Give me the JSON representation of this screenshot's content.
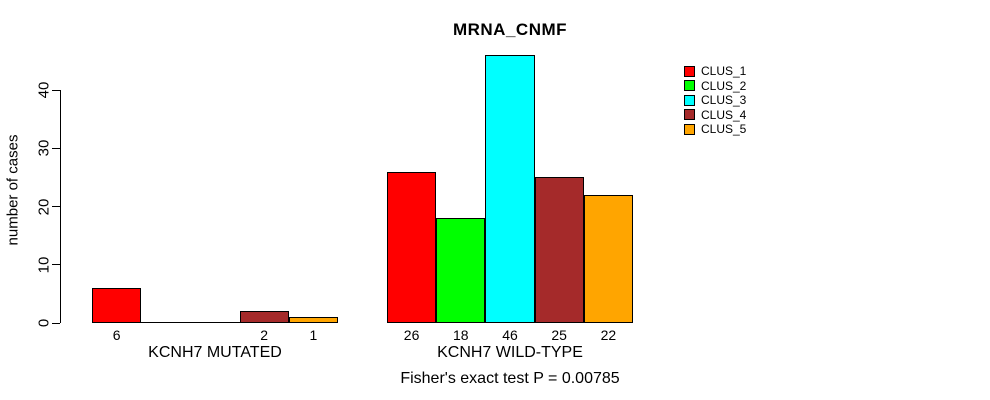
{
  "chart_data": {
    "type": "bar",
    "title": "MRNA_CNMF",
    "ylabel": "number of cases",
    "xlabel": "",
    "ylim": [
      0,
      40
    ],
    "yticks": [
      0,
      10,
      20,
      30,
      40
    ],
    "grid": false,
    "legend_position": "top-right",
    "show_zero_value_labels": false,
    "categories": [
      "KCNH7 MUTATED",
      "KCNH7 WILD-TYPE"
    ],
    "series": [
      {
        "name": "CLUS_1",
        "color": "#ff0000",
        "values": [
          6,
          26
        ]
      },
      {
        "name": "CLUS_2",
        "color": "#00ff00",
        "values": [
          0,
          18
        ]
      },
      {
        "name": "CLUS_3",
        "color": "#00ffff",
        "values": [
          0,
          46
        ]
      },
      {
        "name": "CLUS_4",
        "color": "#a52a2a",
        "values": [
          2,
          25
        ]
      },
      {
        "name": "CLUS_5",
        "color": "#ffa500",
        "values": [
          1,
          22
        ]
      }
    ],
    "annotation": "Fisher's exact test P = 0.00785"
  },
  "style_colors": {
    "background": "#ffffff",
    "axis": "#000000",
    "text": "#000000"
  }
}
